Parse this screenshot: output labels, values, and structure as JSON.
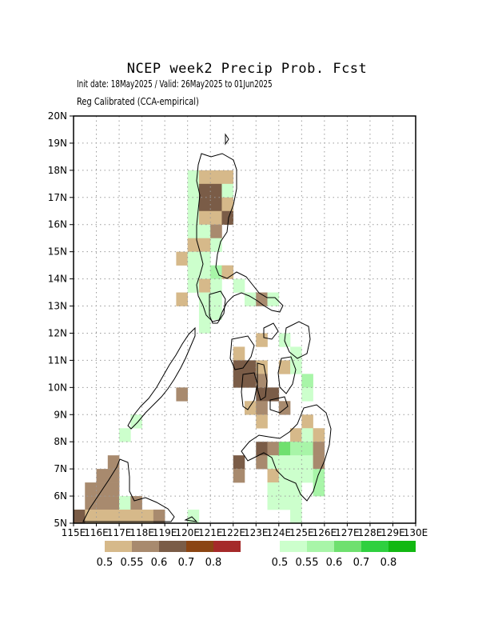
{
  "title": "NCEP week2 Precip Prob. Fcst",
  "subtitle_line1": "Init date: 18May2025 / Valid: 26May2025 to 01Jun2025",
  "subtitle_line2": "Reg Calibrated (CCA-empirical)",
  "map": {
    "lon_range": [
      115,
      130
    ],
    "lat_range": [
      5,
      20
    ],
    "lat_ticks": [
      "5N",
      "6N",
      "7N",
      "8N",
      "9N",
      "10N",
      "11N",
      "12N",
      "13N",
      "14N",
      "15N",
      "16N",
      "17N",
      "18N",
      "19N",
      "20N"
    ],
    "lon_ticks": [
      "115E",
      "116E",
      "117E",
      "118E",
      "119E",
      "120E",
      "121E",
      "122E",
      "123E",
      "124E",
      "125E",
      "126E",
      "127E",
      "128E",
      "129E",
      "130E"
    ],
    "grid": "dotted",
    "dry_colors": [
      "#d6b98a",
      "#a88a6e",
      "#7a5c47",
      "#8b4513",
      "#a52a2a"
    ],
    "wet_colors": [
      "#ccffcc",
      "#a8f5a8",
      "#6fe06f",
      "#2fd03f",
      "#12b812"
    ],
    "cells": [
      {
        "lon": 120.25,
        "lat": 17.75,
        "c": "w1"
      },
      {
        "lon": 120.25,
        "lat": 17.25,
        "c": "w1"
      },
      {
        "lon": 120.25,
        "lat": 16.75,
        "c": "w1"
      },
      {
        "lon": 120.25,
        "lat": 16.25,
        "c": "w1"
      },
      {
        "lon": 120.25,
        "lat": 15.75,
        "c": "w1"
      },
      {
        "lon": 120.75,
        "lat": 17.75,
        "c": "d1"
      },
      {
        "lon": 121.25,
        "lat": 17.75,
        "c": "d1"
      },
      {
        "lon": 121.75,
        "lat": 17.75,
        "c": "d1"
      },
      {
        "lon": 120.75,
        "lat": 17.25,
        "c": "d3"
      },
      {
        "lon": 121.25,
        "lat": 17.25,
        "c": "d3"
      },
      {
        "lon": 121.75,
        "lat": 17.25,
        "c": "w1"
      },
      {
        "lon": 120.75,
        "lat": 16.75,
        "c": "d3"
      },
      {
        "lon": 121.25,
        "lat": 16.75,
        "c": "d3"
      },
      {
        "lon": 121.75,
        "lat": 16.75,
        "c": "d1"
      },
      {
        "lon": 120.75,
        "lat": 16.25,
        "c": "d1"
      },
      {
        "lon": 121.25,
        "lat": 16.25,
        "c": "d1"
      },
      {
        "lon": 121.75,
        "lat": 16.25,
        "c": "d3"
      },
      {
        "lon": 120.75,
        "lat": 15.75,
        "c": "w1"
      },
      {
        "lon": 121.25,
        "lat": 15.75,
        "c": "d2"
      },
      {
        "lon": 120.25,
        "lat": 15.25,
        "c": "d1"
      },
      {
        "lon": 120.75,
        "lat": 15.25,
        "c": "d1"
      },
      {
        "lon": 121.25,
        "lat": 15.25,
        "c": "w1"
      },
      {
        "lon": 119.75,
        "lat": 14.75,
        "c": "d1"
      },
      {
        "lon": 120.25,
        "lat": 14.75,
        "c": "w1"
      },
      {
        "lon": 120.75,
        "lat": 14.75,
        "c": "w1"
      },
      {
        "lon": 120.25,
        "lat": 14.25,
        "c": "w1"
      },
      {
        "lon": 120.75,
        "lat": 14.25,
        "c": "w1"
      },
      {
        "lon": 121.25,
        "lat": 14.25,
        "c": "w2"
      },
      {
        "lon": 121.75,
        "lat": 14.25,
        "c": "d1"
      },
      {
        "lon": 120.25,
        "lat": 13.75,
        "c": "w1"
      },
      {
        "lon": 120.75,
        "lat": 13.75,
        "c": "d1"
      },
      {
        "lon": 121.25,
        "lat": 13.75,
        "c": "w1"
      },
      {
        "lon": 122.25,
        "lat": 13.75,
        "c": "w1"
      },
      {
        "lon": 119.75,
        "lat": 13.25,
        "c": "d1"
      },
      {
        "lon": 120.75,
        "lat": 13.25,
        "c": "w1"
      },
      {
        "lon": 121.25,
        "lat": 13.25,
        "c": "w1"
      },
      {
        "lon": 122.75,
        "lat": 13.25,
        "c": "w1"
      },
      {
        "lon": 123.25,
        "lat": 13.25,
        "c": "d2"
      },
      {
        "lon": 123.75,
        "lat": 13.25,
        "c": "w1"
      },
      {
        "lon": 120.75,
        "lat": 12.75,
        "c": "w1"
      },
      {
        "lon": 121.25,
        "lat": 12.75,
        "c": "w1"
      },
      {
        "lon": 120.75,
        "lat": 12.25,
        "c": "w1"
      },
      {
        "lon": 123.25,
        "lat": 11.75,
        "c": "d1"
      },
      {
        "lon": 124.25,
        "lat": 11.75,
        "c": "w1"
      },
      {
        "lon": 122.25,
        "lat": 11.25,
        "c": "d1"
      },
      {
        "lon": 124.75,
        "lat": 11.25,
        "c": "w1"
      },
      {
        "lon": 122.25,
        "lat": 10.75,
        "c": "d3"
      },
      {
        "lon": 122.75,
        "lat": 10.75,
        "c": "d3"
      },
      {
        "lon": 123.25,
        "lat": 10.75,
        "c": "d1"
      },
      {
        "lon": 124.25,
        "lat": 10.75,
        "c": "d1"
      },
      {
        "lon": 124.75,
        "lat": 10.75,
        "c": "w1"
      },
      {
        "lon": 122.25,
        "lat": 10.25,
        "c": "d3"
      },
      {
        "lon": 122.75,
        "lat": 10.25,
        "c": "d3"
      },
      {
        "lon": 123.25,
        "lat": 10.25,
        "c": "d2"
      },
      {
        "lon": 125.25,
        "lat": 10.25,
        "c": "w2"
      },
      {
        "lon": 123.25,
        "lat": 9.75,
        "c": "d3"
      },
      {
        "lon": 123.75,
        "lat": 9.75,
        "c": "d3"
      },
      {
        "lon": 125.25,
        "lat": 9.75,
        "c": "w1"
      },
      {
        "lon": 122.75,
        "lat": 9.25,
        "c": "d1"
      },
      {
        "lon": 123.25,
        "lat": 9.25,
        "c": "d2"
      },
      {
        "lon": 124.25,
        "lat": 9.25,
        "c": "d2"
      },
      {
        "lon": 119.75,
        "lat": 9.75,
        "c": "d2"
      },
      {
        "lon": 123.25,
        "lat": 8.75,
        "c": "d1"
      },
      {
        "lon": 125.25,
        "lat": 8.75,
        "c": "d1"
      },
      {
        "lon": 124.75,
        "lat": 8.25,
        "c": "d1"
      },
      {
        "lon": 125.25,
        "lat": 8.25,
        "c": "w1"
      },
      {
        "lon": 125.75,
        "lat": 8.25,
        "c": "d1"
      },
      {
        "lon": 123.25,
        "lat": 7.75,
        "c": "d3"
      },
      {
        "lon": 123.75,
        "lat": 7.75,
        "c": "d2"
      },
      {
        "lon": 124.25,
        "lat": 7.75,
        "c": "w3"
      },
      {
        "lon": 124.75,
        "lat": 7.75,
        "c": "w2"
      },
      {
        "lon": 125.25,
        "lat": 7.75,
        "c": "w2"
      },
      {
        "lon": 125.75,
        "lat": 7.75,
        "c": "d2"
      },
      {
        "lon": 122.25,
        "lat": 7.25,
        "c": "d3"
      },
      {
        "lon": 123.25,
        "lat": 7.25,
        "c": "d2"
      },
      {
        "lon": 123.75,
        "lat": 7.25,
        "c": "w1"
      },
      {
        "lon": 124.25,
        "lat": 7.25,
        "c": "w1"
      },
      {
        "lon": 124.75,
        "lat": 7.25,
        "c": "w1"
      },
      {
        "lon": 125.25,
        "lat": 7.25,
        "c": "w1"
      },
      {
        "lon": 125.75,
        "lat": 7.25,
        "c": "d2"
      },
      {
        "lon": 122.25,
        "lat": 6.75,
        "c": "d2"
      },
      {
        "lon": 123.75,
        "lat": 6.75,
        "c": "d1"
      },
      {
        "lon": 124.25,
        "lat": 6.75,
        "c": "w1"
      },
      {
        "lon": 124.75,
        "lat": 6.75,
        "c": "w1"
      },
      {
        "lon": 125.25,
        "lat": 6.75,
        "c": "w1"
      },
      {
        "lon": 125.75,
        "lat": 6.75,
        "c": "w2"
      },
      {
        "lon": 123.75,
        "lat": 6.25,
        "c": "w1"
      },
      {
        "lon": 124.25,
        "lat": 6.25,
        "c": "w1"
      },
      {
        "lon": 124.75,
        "lat": 6.25,
        "c": "w1"
      },
      {
        "lon": 125.75,
        "lat": 6.25,
        "c": "w2"
      },
      {
        "lon": 123.75,
        "lat": 5.75,
        "c": "w1"
      },
      {
        "lon": 124.25,
        "lat": 5.75,
        "c": "w1"
      },
      {
        "lon": 124.75,
        "lat": 5.75,
        "c": "w1"
      },
      {
        "lon": 124.75,
        "lat": 5.25,
        "c": "w1"
      },
      {
        "lon": 116.75,
        "lat": 7.25,
        "c": "d2"
      },
      {
        "lon": 116.25,
        "lat": 6.75,
        "c": "d2"
      },
      {
        "lon": 116.75,
        "lat": 6.75,
        "c": "d2"
      },
      {
        "lon": 115.75,
        "lat": 6.25,
        "c": "d2"
      },
      {
        "lon": 116.25,
        "lat": 6.25,
        "c": "d2"
      },
      {
        "lon": 116.75,
        "lat": 6.25,
        "c": "d2"
      },
      {
        "lon": 115.75,
        "lat": 5.75,
        "c": "d2"
      },
      {
        "lon": 116.25,
        "lat": 5.75,
        "c": "d2"
      },
      {
        "lon": 116.75,
        "lat": 5.75,
        "c": "d2"
      },
      {
        "lon": 117.25,
        "lat": 5.75,
        "c": "w1"
      },
      {
        "lon": 117.75,
        "lat": 5.75,
        "c": "d2"
      },
      {
        "lon": 115.25,
        "lat": 5.25,
        "c": "d3"
      },
      {
        "lon": 115.75,
        "lat": 5.25,
        "c": "d1"
      },
      {
        "lon": 116.25,
        "lat": 5.25,
        "c": "d1"
      },
      {
        "lon": 116.75,
        "lat": 5.25,
        "c": "d1"
      },
      {
        "lon": 117.25,
        "lat": 5.25,
        "c": "d1"
      },
      {
        "lon": 117.75,
        "lat": 5.25,
        "c": "d1"
      },
      {
        "lon": 118.25,
        "lat": 5.25,
        "c": "d1"
      },
      {
        "lon": 118.75,
        "lat": 5.25,
        "c": "d2"
      },
      {
        "lon": 117.25,
        "lat": 8.25,
        "c": "w1"
      },
      {
        "lon": 117.75,
        "lat": 8.75,
        "c": "w1"
      },
      {
        "lon": 120.25,
        "lat": 5.25,
        "c": "w1"
      }
    ]
  },
  "legend": {
    "below_normal": {
      "labels": [
        "0.5",
        "0.55",
        "0.6",
        "0.7",
        "0.8"
      ]
    },
    "above_normal": {
      "labels": [
        "0.5",
        "0.55",
        "0.6",
        "0.7",
        "0.8"
      ]
    }
  }
}
